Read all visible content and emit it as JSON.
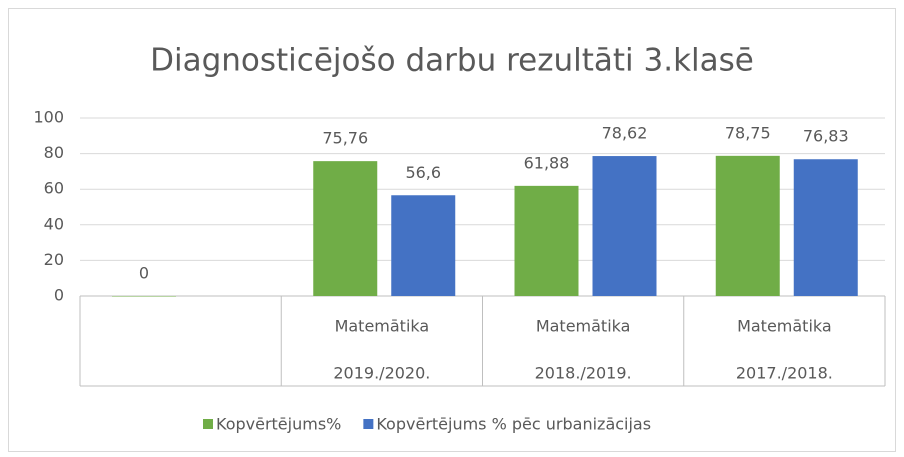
{
  "chart_data": {
    "type": "bar",
    "title": "Diagnosticējošo darbu rezultāti 3.klasē",
    "categories": [
      null,
      [
        "Matemātika",
        "2019./2020."
      ],
      [
        "Matemātika",
        "2018./2019."
      ],
      [
        "Matemātika",
        "2017./2018."
      ]
    ],
    "series": [
      {
        "name": "Kopvērtējums%",
        "color": "#70ad47",
        "values": [
          0,
          75.76,
          61.88,
          78.75
        ],
        "value_labels": [
          "0",
          "75,76",
          "61,88",
          "78,75"
        ]
      },
      {
        "name": "Kopvērtējums % pēc urbanizācijas",
        "color": "#4472c4",
        "values": [
          null,
          56.6,
          78.62,
          76.83
        ],
        "value_labels": [
          null,
          "56,6",
          "78,62",
          "76,83"
        ]
      }
    ],
    "ylim": [
      0,
      100
    ],
    "yticks": [
      0,
      20,
      40,
      60,
      80,
      100
    ],
    "grid": true,
    "legend": "bottom"
  }
}
